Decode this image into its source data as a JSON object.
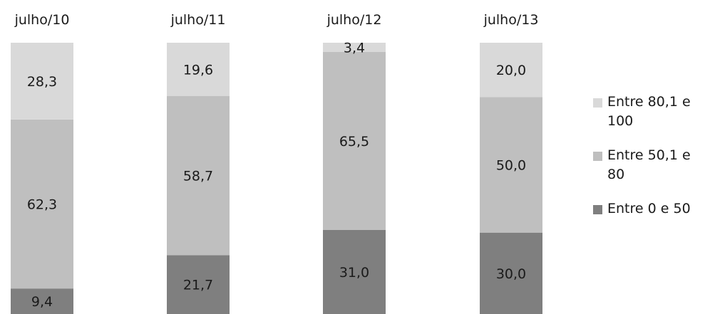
{
  "chart_data": {
    "type": "bar",
    "stacked": true,
    "stack_percent": true,
    "categories": [
      "julho/10",
      "julho/11",
      "julho/12",
      "julho/13"
    ],
    "series": [
      {
        "name": "Entre 0 e 50",
        "values": [
          "9,4",
          "21,7",
          "31,0",
          "30,0"
        ],
        "numeric": [
          9.4,
          21.7,
          31.0,
          30.0
        ],
        "color": "#7f7f7f"
      },
      {
        "name": "Entre 50,1 e 80",
        "values": [
          "62,3",
          "58,7",
          "65,5",
          "50,0"
        ],
        "numeric": [
          62.3,
          58.7,
          65.5,
          50.0
        ],
        "color": "#bfbfbf"
      },
      {
        "name": "Entre 80,1 e 100",
        "values": [
          "28,3",
          "19,6",
          "3,4",
          "20,0"
        ],
        "numeric": [
          28.3,
          19.6,
          3.4,
          20.0
        ],
        "color": "#d9d9d9"
      }
    ],
    "legend": {
      "position": "right",
      "order": [
        "Entre 80,1 e 100",
        "Entre 50,1 e 80",
        "Entre 0 e 50"
      ]
    },
    "ylim": [
      0,
      100
    ],
    "grid": false,
    "title": "",
    "xlabel": "",
    "ylabel": ""
  }
}
